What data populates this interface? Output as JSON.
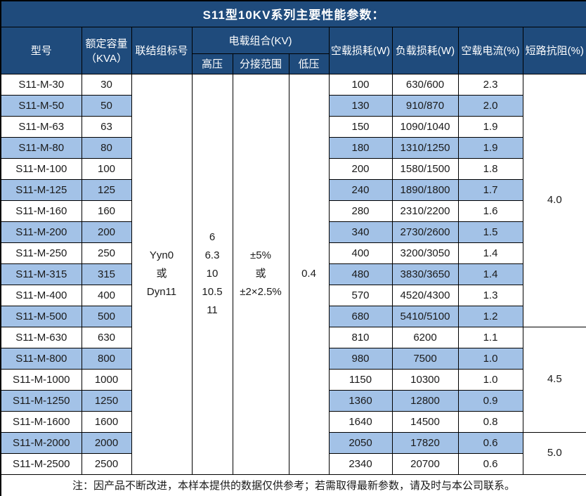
{
  "title": "S11型10KV系列主要性能参数：",
  "header": {
    "model": "型号",
    "capacity": "额定容量\n（KVA）",
    "connection": "联结组标号",
    "load_combo": "电载组合(KV)",
    "high_voltage": "高压",
    "tap_range": "分接范围",
    "low_voltage": "低压",
    "no_load_loss": "空载损耗(W)",
    "load_loss": "负载损耗(W)",
    "no_load_current": "空载电流(%)",
    "impedance": "短路抗阻(%)"
  },
  "merged_cells": {
    "connection_label": "Yyn0\n或\nDyn11",
    "high_voltage_values": "6\n6.3\n10\n10.5\n11",
    "tap_range_values": "±5%\n或\n±2×2.5%",
    "low_voltage_value": "0.4"
  },
  "impedance_groups": [
    {
      "value": "4.0",
      "rows": 12
    },
    {
      "value": "4.5",
      "rows": 5
    },
    {
      "value": "5.0",
      "rows": 2
    }
  ],
  "rows": [
    {
      "model": "S11-M-30",
      "capacity": "30",
      "no_load_loss": "100",
      "load_loss": "630/600",
      "no_load_current": "2.3"
    },
    {
      "model": "S11-M-50",
      "capacity": "50",
      "no_load_loss": "130",
      "load_loss": "910/870",
      "no_load_current": "2.0"
    },
    {
      "model": "S11-M-63",
      "capacity": "63",
      "no_load_loss": "150",
      "load_loss": "1090/1040",
      "no_load_current": "1.9"
    },
    {
      "model": "S11-M-80",
      "capacity": "80",
      "no_load_loss": "180",
      "load_loss": "1310/1250",
      "no_load_current": "1.9"
    },
    {
      "model": "S11-M-100",
      "capacity": "100",
      "no_load_loss": "200",
      "load_loss": "1580/1500",
      "no_load_current": "1.8"
    },
    {
      "model": "S11-M-125",
      "capacity": "125",
      "no_load_loss": "240",
      "load_loss": "1890/1800",
      "no_load_current": "1.7"
    },
    {
      "model": "S11-M-160",
      "capacity": "160",
      "no_load_loss": "280",
      "load_loss": "2310/2200",
      "no_load_current": "1.6"
    },
    {
      "model": "S11-M-200",
      "capacity": "200",
      "no_load_loss": "340",
      "load_loss": "2730/2600",
      "no_load_current": "1.5"
    },
    {
      "model": "S11-M-250",
      "capacity": "250",
      "no_load_loss": "400",
      "load_loss": "3200/3050",
      "no_load_current": "1.4"
    },
    {
      "model": "S11-M-315",
      "capacity": "315",
      "no_load_loss": "480",
      "load_loss": "3830/3650",
      "no_load_current": "1.4"
    },
    {
      "model": "S11-M-400",
      "capacity": "400",
      "no_load_loss": "570",
      "load_loss": "4520/4300",
      "no_load_current": "1.3"
    },
    {
      "model": "S11-M-500",
      "capacity": "500",
      "no_load_loss": "680",
      "load_loss": "5410/5100",
      "no_load_current": "1.2"
    },
    {
      "model": "S11-M-630",
      "capacity": "630",
      "no_load_loss": "810",
      "load_loss": "6200",
      "no_load_current": "1.1"
    },
    {
      "model": "S11-M-800",
      "capacity": "800",
      "no_load_loss": "980",
      "load_loss": "7500",
      "no_load_current": "1.0"
    },
    {
      "model": "S11-M-1000",
      "capacity": "1000",
      "no_load_loss": "1150",
      "load_loss": "10300",
      "no_load_current": "1.0"
    },
    {
      "model": "S11-M-1250",
      "capacity": "1250",
      "no_load_loss": "1360",
      "load_loss": "12800",
      "no_load_current": "0.9"
    },
    {
      "model": "S11-M-1600",
      "capacity": "1600",
      "no_load_loss": "1640",
      "load_loss": "14500",
      "no_load_current": "0.8"
    },
    {
      "model": "S11-M-2000",
      "capacity": "2000",
      "no_load_loss": "2050",
      "load_loss": "17820",
      "no_load_current": "0.6"
    },
    {
      "model": "S11-M-2500",
      "capacity": "2500",
      "no_load_loss": "2340",
      "load_loss": "20700",
      "no_load_current": "0.6"
    }
  ],
  "note": "注：因产品不断改进，本样本提供的数据仅供参考；若需取得最新参数，请及时与本公司联系。",
  "colors": {
    "header_bg": "#1F4B7C",
    "stripe_bg": "#A3C2E7",
    "border_color": "#000000",
    "text_color": "#1A1A1A",
    "header_text": "#FFFFFF"
  }
}
